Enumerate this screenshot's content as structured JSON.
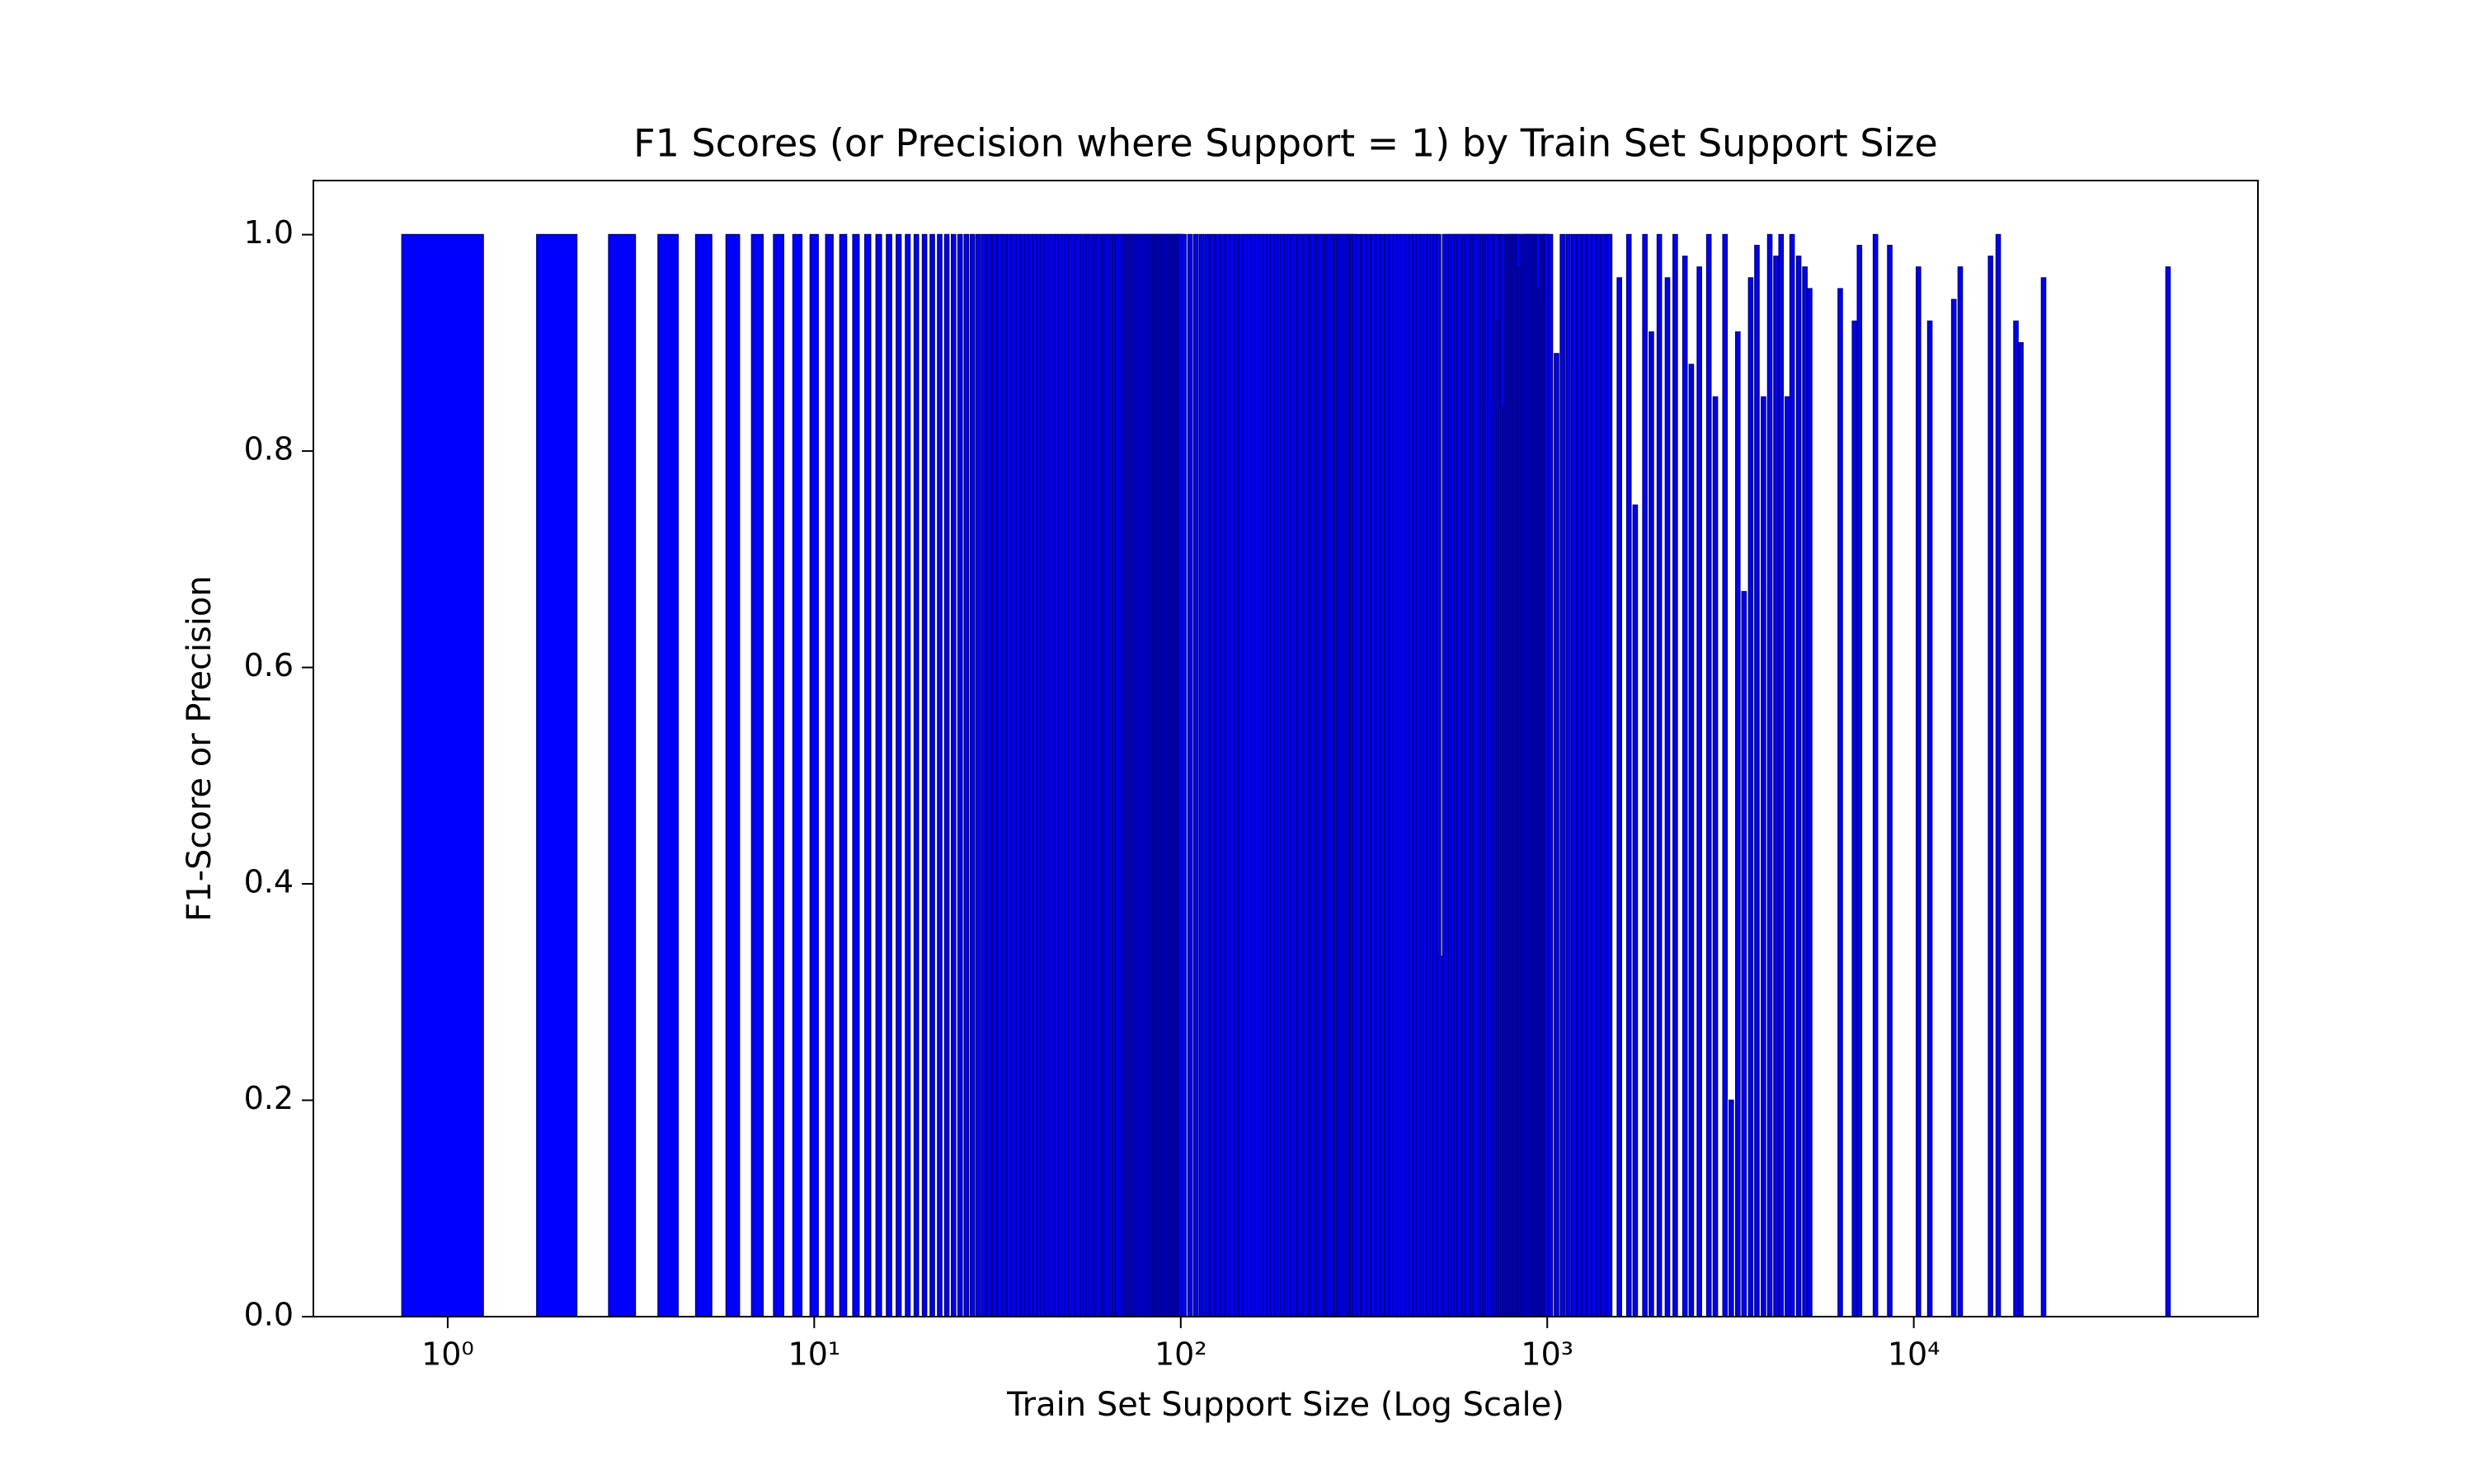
{
  "chart_data": {
    "type": "bar",
    "title": "F1 Scores (or Precision where Support = 1) by Train Set Support Size",
    "xlabel": "Train Set Support Size (Log Scale)",
    "ylabel": "F1-Score or Precision",
    "xscale": "log",
    "color": "#0000ff",
    "edgecolor": "#00008b",
    "xlim": [
      0.43,
      86900
    ],
    "ylim": [
      0,
      1.05
    ],
    "xticks": [
      {
        "value": 1,
        "label": "10⁰"
      },
      {
        "value": 10,
        "label": "10¹"
      },
      {
        "value": 100,
        "label": "10²"
      },
      {
        "value": 1000,
        "label": "10³"
      },
      {
        "value": 10000,
        "label": "10⁴"
      }
    ],
    "yticks": [
      {
        "value": 0,
        "label": "0.0"
      },
      {
        "value": 0.2,
        "label": "0.2"
      },
      {
        "value": 0.4,
        "label": "0.4"
      },
      {
        "value": 0.6,
        "label": "0.6"
      },
      {
        "value": 0.8,
        "label": "0.8"
      },
      {
        "value": 1.0,
        "label": "1.0"
      }
    ],
    "x": [
      1,
      2,
      3,
      4,
      5,
      6,
      7,
      8,
      9,
      10,
      11,
      12,
      13,
      14,
      15,
      16,
      17,
      18,
      19,
      20,
      21,
      22,
      23,
      24,
      25,
      26,
      27,
      28,
      29,
      30,
      31,
      32,
      33,
      34,
      35,
      36,
      37,
      38,
      39,
      40,
      41,
      42,
      43,
      44,
      45,
      46,
      47,
      48,
      49,
      50,
      51,
      52,
      53,
      54,
      55,
      56,
      57,
      58,
      59,
      60,
      61,
      62,
      63,
      64,
      65,
      66,
      67,
      68,
      69,
      70,
      71,
      72,
      73,
      74,
      75,
      76,
      77,
      78,
      79,
      80,
      81,
      82,
      83,
      84,
      85,
      86,
      87,
      88,
      89,
      90,
      91,
      92,
      93,
      94,
      95,
      96,
      97,
      98,
      99,
      100,
      102,
      106,
      110,
      114,
      118,
      122,
      126,
      130,
      134,
      138,
      142,
      146,
      150,
      154,
      158,
      162,
      166,
      170,
      174,
      178,
      182,
      186,
      190,
      194,
      198,
      202,
      206,
      210,
      214,
      218,
      222,
      226,
      230,
      234,
      238,
      242,
      246,
      250,
      254,
      258,
      262,
      266,
      270,
      274,
      278,
      282,
      286,
      290,
      294,
      298,
      305,
      315,
      325,
      335,
      345,
      355,
      365,
      375,
      385,
      395,
      405,
      415,
      425,
      435,
      445,
      455,
      465,
      475,
      485,
      495,
      505,
      515,
      525,
      535,
      545,
      555,
      565,
      575,
      585,
      595,
      605,
      615,
      625,
      635,
      645,
      655,
      665,
      675,
      685,
      695,
      705,
      715,
      725,
      735,
      745,
      755,
      765,
      775,
      785,
      795,
      805,
      815,
      825,
      835,
      845,
      855,
      865,
      875,
      885,
      895,
      905,
      915,
      925,
      935,
      945,
      955,
      965,
      975,
      985,
      995,
      1020,
      1060,
      1100,
      1140,
      1180,
      1220,
      1260,
      1300,
      1340,
      1380,
      1420,
      1460,
      1480,
      1573,
      1670,
      1738,
      1847,
      1923,
      2022,
      2128,
      2234,
      2375,
      2472,
      2600,
      2760,
      2875,
      3055,
      3177,
      3311,
      3443,
      3589,
      3733,
      3890,
      4047,
      4208,
      4345,
      4519,
      4656,
      4853,
      5047,
      5200,
      6300,
      6890,
      7110,
      7860,
      8600,
      10300,
      11060,
      12860,
      13390,
      16200,
      17000,
      19000,
      19600,
      22600,
      49400
    ],
    "values": [
      1,
      1,
      1,
      1,
      1,
      1,
      1,
      1,
      1,
      1,
      1,
      1,
      1,
      1,
      1,
      1,
      1,
      1,
      1,
      1,
      1,
      1,
      1,
      1,
      1,
      1,
      1,
      1,
      1,
      1,
      1,
      1,
      1,
      1,
      1,
      1,
      1,
      1,
      1,
      1,
      1,
      1,
      1,
      1,
      1,
      1,
      1,
      1,
      1,
      1,
      1,
      1,
      1,
      1,
      1,
      1,
      1,
      1,
      1,
      1,
      1,
      1,
      1,
      1,
      1,
      1,
      1,
      1,
      1,
      1,
      1,
      1,
      1,
      1,
      1,
      1,
      1,
      1,
      1,
      1,
      1,
      1,
      1,
      1,
      1,
      1,
      1,
      1,
      1,
      1,
      1,
      1,
      1,
      1,
      1,
      1,
      1,
      1,
      1,
      1,
      1,
      1,
      1,
      1,
      1,
      1,
      1,
      1,
      1,
      1,
      1,
      1,
      1,
      1,
      1,
      1,
      1,
      1,
      1,
      1,
      1,
      1,
      1,
      1,
      1,
      1,
      1,
      1,
      1,
      1,
      1,
      1,
      1,
      1,
      1,
      1,
      1,
      1,
      1,
      1,
      1,
      1,
      1,
      1,
      1,
      1,
      1,
      1,
      1,
      1,
      1,
      1,
      1,
      1,
      1,
      1,
      1,
      1,
      1,
      1,
      1,
      1,
      1,
      1,
      1,
      1,
      1,
      1,
      1,
      1,
      1,
      0.333,
      1,
      1,
      1,
      1,
      1,
      1,
      1,
      1,
      1,
      1,
      1,
      1,
      1,
      1,
      1,
      1,
      1,
      1,
      1,
      1,
      1,
      0.92,
      1,
      1,
      0.84,
      1,
      1,
      1,
      1,
      1,
      1,
      1,
      0.97,
      1,
      1,
      1,
      1,
      1,
      1,
      1,
      1,
      1,
      1,
      0.95,
      1,
      1,
      1,
      1,
      1,
      0.89,
      1,
      1,
      1,
      1,
      1,
      1,
      1,
      1,
      1,
      1,
      1,
      0.96,
      1,
      0.75,
      1,
      0.91,
      1,
      0.96,
      1,
      0.98,
      0.88,
      0.97,
      1,
      0.85,
      1,
      0.2,
      0.91,
      0.67,
      0.96,
      0.99,
      0.85,
      1,
      0.98,
      1,
      0.85,
      1,
      0.98,
      0.97,
      0.95,
      0.95,
      0.92,
      0.99,
      1,
      0.99,
      0.97,
      0.92,
      0.94,
      0.97,
      0.98,
      1,
      0.92,
      0.9,
      0.96,
      0.97
    ]
  }
}
